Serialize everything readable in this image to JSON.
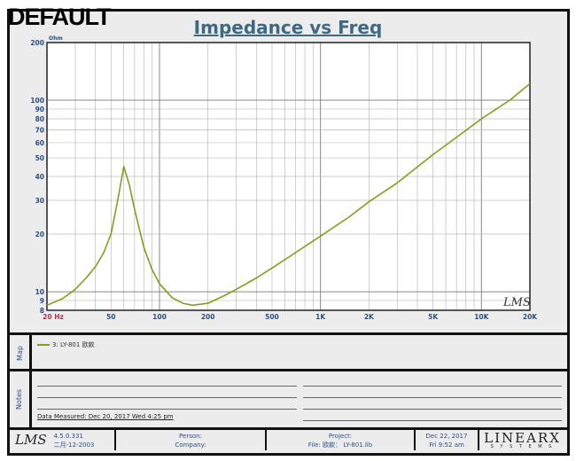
{
  "watermark": "DEFAULT",
  "chart_data": {
    "type": "line",
    "title": "Impedance vs Freq",
    "ylabel": "Ohm",
    "xscale": "log",
    "yscale": "log",
    "xlim": [
      20,
      20000
    ],
    "ylim": [
      8,
      200
    ],
    "grid": true,
    "x_ticks": [
      {
        "v": 20,
        "label": "20  Hz"
      },
      {
        "v": 50,
        "label": "50"
      },
      {
        "v": 100,
        "label": "100"
      },
      {
        "v": 200,
        "label": "200"
      },
      {
        "v": 500,
        "label": "500"
      },
      {
        "v": 1000,
        "label": "1K"
      },
      {
        "v": 2000,
        "label": "2K"
      },
      {
        "v": 5000,
        "label": "5K"
      },
      {
        "v": 10000,
        "label": "10K"
      },
      {
        "v": 20000,
        "label": "20K"
      }
    ],
    "y_ticks": [
      8,
      9,
      10,
      20,
      30,
      40,
      50,
      60,
      70,
      80,
      90,
      100,
      200
    ],
    "series": [
      {
        "name": "3: LY-801 欧款",
        "color": "#8a9a1e",
        "x": [
          20,
          25,
          30,
          35,
          40,
          45,
          50,
          55,
          60,
          65,
          70,
          80,
          90,
          100,
          120,
          140,
          160,
          200,
          250,
          300,
          400,
          500,
          700,
          1000,
          1500,
          2000,
          3000,
          5000,
          7000,
          10000,
          15000,
          20000
        ],
        "y": [
          8.5,
          9.2,
          10.3,
          11.8,
          13.5,
          16,
          20,
          30,
          45,
          36,
          27,
          17,
          13,
          11,
          9.3,
          8.7,
          8.5,
          8.7,
          9.5,
          10.3,
          11.8,
          13.3,
          16,
          19.5,
          24.5,
          29.5,
          37,
          52,
          64,
          80,
          100,
          122
        ]
      }
    ],
    "logo": "LMS"
  },
  "map_label": "Map",
  "notes_label": "Notes",
  "data_measured": "Data Measured: Dec 20, 2017  Wed  4:25 pm",
  "footer": {
    "version": "4.5.0.331",
    "build_date": "二月-12-2003",
    "person": "Person:",
    "company": "Company:",
    "project": "Project:",
    "file": "File: 欧款： LY-801.lib",
    "date": "Dec 22, 2017",
    "time": "Fri  9:52 am",
    "brand": "LINEARX",
    "brand_sub": "S Y S T E M S",
    "logo": "LMS"
  }
}
